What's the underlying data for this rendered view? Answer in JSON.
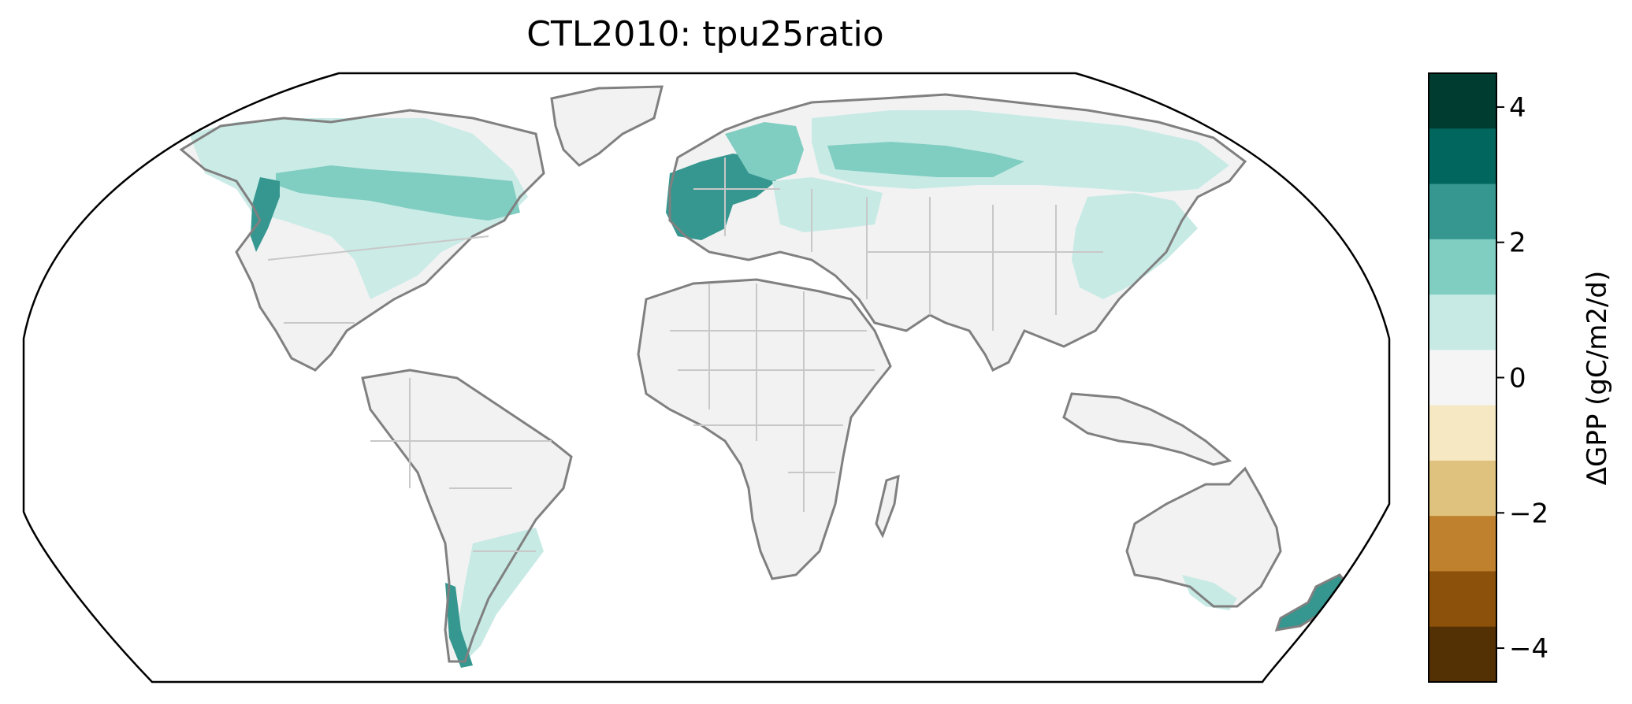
{
  "title": "CTL2010: tpu25ratio",
  "colorbar": {
    "label": "ΔGPP (gC/m2/d)",
    "ticks": [
      {
        "value": 4,
        "label": "4"
      },
      {
        "value": 2,
        "label": "2"
      },
      {
        "value": 0,
        "label": "0"
      },
      {
        "value": -2,
        "label": "−2"
      },
      {
        "value": -4,
        "label": "−4"
      }
    ],
    "range": [
      -4.5,
      4.5
    ],
    "bins": [
      {
        "from": 3.5,
        "to": 4.5,
        "color": "#003c30"
      },
      {
        "from": 2.5,
        "to": 3.5,
        "color": "#01665e"
      },
      {
        "from": 1.5,
        "to": 2.5,
        "color": "#35978f"
      },
      {
        "from": 0.5,
        "to": 1.5,
        "color": "#80cdc1"
      },
      {
        "from": -0.5,
        "to": 0.5,
        "color": "#c7eae5"
      },
      {
        "from": -0.5,
        "to": 0.5,
        "color": "#f5f5f5"
      },
      {
        "from": -1.5,
        "to": -0.5,
        "color": "#f6e8c3"
      },
      {
        "from": -2.5,
        "to": -1.5,
        "color": "#dfc27d"
      },
      {
        "from": -3.5,
        "to": -2.5,
        "color": "#bf812d"
      },
      {
        "from": -4.5,
        "to": -3.5,
        "color": "#8c510a"
      },
      {
        "from": -4.5,
        "to": -3.5,
        "color": "#543005"
      }
    ]
  },
  "map": {
    "projection": "Robinson",
    "colors": {
      "land_zero": "#f2f2f2",
      "light_teal": "#c7eae5",
      "mid_teal": "#80cdc1",
      "teal": "#35978f",
      "dark_teal": "#01665e",
      "coastline": "#808080",
      "borders": "#c8c8c8",
      "frame": "#000000"
    }
  }
}
